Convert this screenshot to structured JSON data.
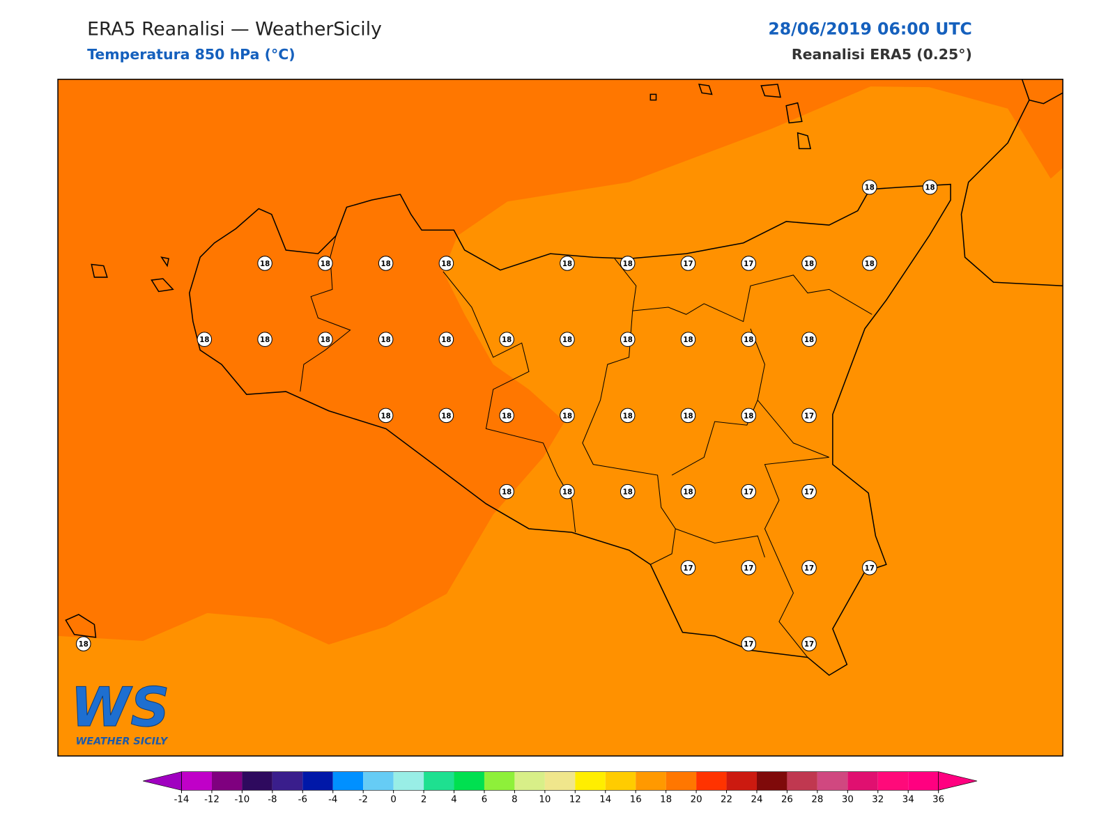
{
  "header": {
    "title": "ERA5 Reanalisi — WeatherSicily",
    "subtitle": "Temperatura 850 hPa (°C)",
    "date": "28/06/2019 06:00 UTC",
    "source": "Reanalisi ERA5 (0.25°)"
  },
  "logo": {
    "mark": "WS",
    "name": "WEATHER SICILY"
  },
  "stations": [
    18,
    18,
    18,
    18,
    18,
    18,
    18,
    18,
    17,
    17,
    18,
    18,
    18,
    18,
    18,
    18,
    18,
    18,
    18,
    18,
    18,
    18,
    18,
    18,
    18,
    18,
    18,
    18,
    18,
    18,
    17,
    18,
    18,
    18,
    18,
    17,
    17,
    17,
    17,
    17,
    17,
    18,
    17,
    17
  ],
  "colorbar": {
    "ticks": [
      -14,
      -12,
      -10,
      -8,
      -6,
      -4,
      -2,
      0,
      2,
      4,
      6,
      8,
      10,
      12,
      14,
      16,
      18,
      20,
      22,
      24,
      26,
      28,
      30,
      32,
      34,
      36
    ],
    "colors": [
      "#c000c8",
      "#7f007f",
      "#2e0a5e",
      "#3a1e8c",
      "#0018a8",
      "#0090ff",
      "#66ccf5",
      "#99eee6",
      "#1ee090",
      "#00e050",
      "#8ef03a",
      "#d8ef88",
      "#f0e68c",
      "#ffee00",
      "#ffcc00",
      "#ff9900",
      "#ff7700",
      "#ff3300",
      "#cc1a10",
      "#7f0a0a",
      "#c03850",
      "#d04880",
      "#e01070",
      "#ff0a7a",
      "#ff0080"
    ],
    "under_color": "#a000c0",
    "over_color": "#ff0080"
  }
}
